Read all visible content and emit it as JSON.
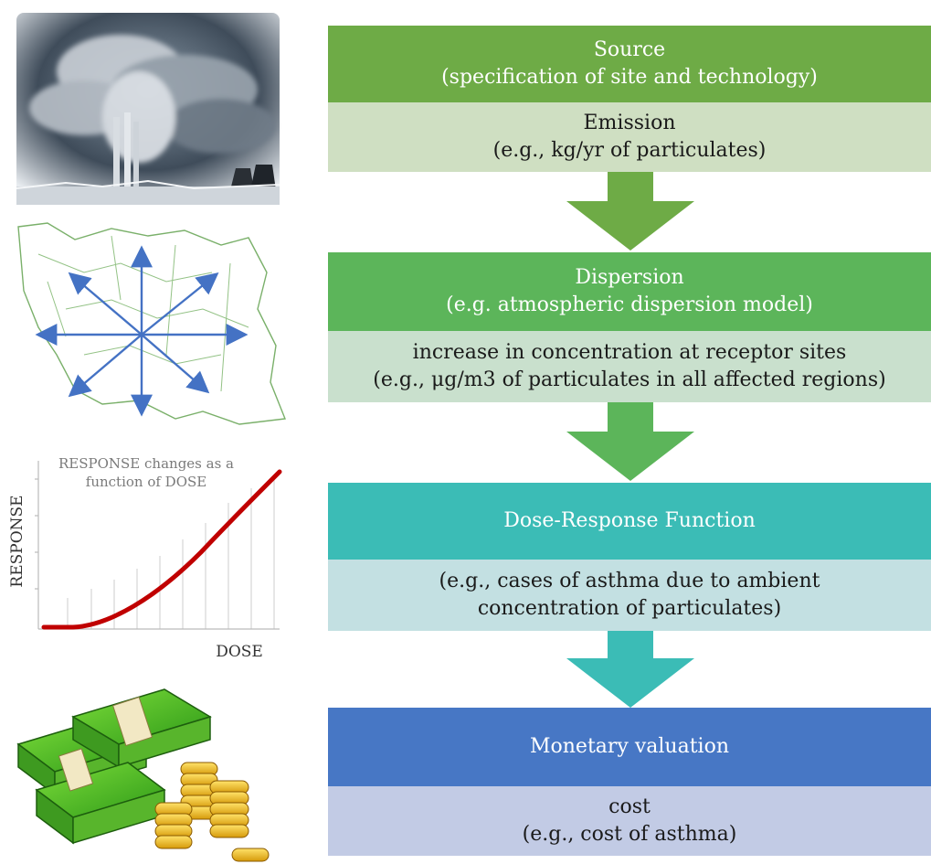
{
  "colors": {
    "source_header": "#6eab46",
    "source_sub": "#cfdfc2",
    "dispersion_header": "#5cb55a",
    "dispersion_sub": "#c9e0cd",
    "dose_header": "#3bbcb6",
    "dose_sub": "#c3e0e2",
    "monetary_header": "#4777c5",
    "monetary_sub": "#c2cbe5",
    "curve": "#c00000"
  },
  "steps": {
    "source": {
      "title": "Source",
      "subtitle": "(specification of site and technology)",
      "output_line1": "Emission",
      "output_line2": "(e.g., kg/yr of particulates)"
    },
    "dispersion": {
      "title": "Dispersion",
      "subtitle": "(e.g. atmospheric dispersion model)",
      "output_line1": "increase in concentration at receptor sites",
      "output_line2": "(e.g., μg/m3 of particulates in all affected regions)"
    },
    "dose_response": {
      "title": "Dose-Response Function",
      "output_line1": "(e.g., cases of asthma due to ambient",
      "output_line2": "concentration of particulates)"
    },
    "monetary": {
      "title": "Monetary valuation",
      "output_line1": "cost",
      "output_line2": "(e.g., cost of asthma)"
    }
  },
  "dose_chart": {
    "annotation_line1": "RESPONSE changes as a",
    "annotation_line2": "function of DOSE",
    "ylabel": "RESPONSE",
    "xlabel": "DOSE"
  },
  "icons": {
    "factory": "smokestack-photo",
    "map": "region-map-with-dispersion-arrows",
    "money": "cash-and-coins"
  }
}
